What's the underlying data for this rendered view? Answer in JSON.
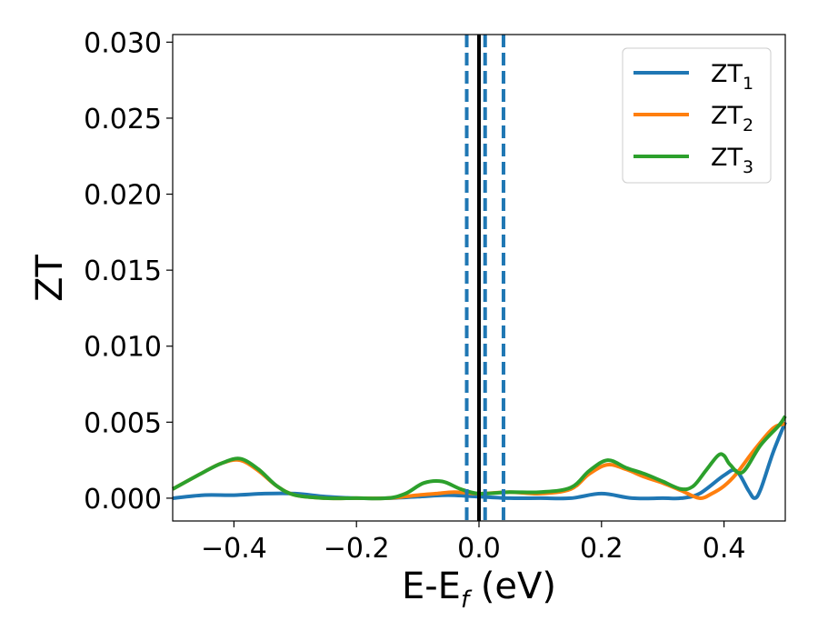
{
  "chart_data": {
    "type": "line",
    "xlabel_main": "E-E",
    "xlabel_sub": "f",
    "xlabel_tail": " (eV)",
    "ylabel": "ZT",
    "xlim": [
      -0.5,
      0.5
    ],
    "ylim": [
      -0.0015,
      0.0305
    ],
    "x_ticks": [
      -0.4,
      -0.2,
      0.0,
      0.2,
      0.4
    ],
    "x_tick_labels": [
      "−0.4",
      "−0.2",
      "0.0",
      "0.2",
      "0.4"
    ],
    "y_ticks": [
      0.0,
      0.005,
      0.01,
      0.015,
      0.02,
      0.025,
      0.03
    ],
    "y_tick_labels": [
      "0.000",
      "0.005",
      "0.010",
      "0.015",
      "0.020",
      "0.025",
      "0.030"
    ],
    "grid": false,
    "legend_position": "top-right",
    "vertical_lines": [
      {
        "x": 0.0,
        "color": "#000000",
        "style": "solid"
      },
      {
        "x": -0.02,
        "color": "#1f77b4",
        "style": "dashed"
      },
      {
        "x": 0.01,
        "color": "#1f77b4",
        "style": "dashed"
      },
      {
        "x": 0.04,
        "color": "#1f77b4",
        "style": "dashed"
      }
    ],
    "series": [
      {
        "name_main": "ZT",
        "name_sub": "1",
        "color": "#1f77b4",
        "x": [
          -0.5,
          -0.45,
          -0.4,
          -0.35,
          -0.3,
          -0.25,
          -0.2,
          -0.15,
          -0.1,
          -0.05,
          0.0,
          0.05,
          0.1,
          0.15,
          0.2,
          0.25,
          0.3,
          0.33,
          0.36,
          0.4,
          0.42,
          0.44,
          0.45,
          0.46,
          0.48,
          0.5
        ],
        "y": [
          0.0,
          0.0002,
          0.0002,
          0.0003,
          0.0003,
          0.0001,
          0.0,
          0.0,
          0.0001,
          0.0002,
          0.0001,
          0.0,
          0.0,
          0.0,
          0.0003,
          0.0,
          0.0,
          0.0,
          0.0003,
          0.0015,
          0.0018,
          0.0005,
          0.0,
          0.0006,
          0.003,
          0.005
        ]
      },
      {
        "name_main": "ZT",
        "name_sub": "2",
        "color": "#ff7f0e",
        "x": [
          -0.5,
          -0.45,
          -0.42,
          -0.39,
          -0.36,
          -0.33,
          -0.3,
          -0.25,
          -0.2,
          -0.15,
          -0.1,
          -0.07,
          -0.04,
          0.0,
          0.05,
          0.1,
          0.15,
          0.18,
          0.21,
          0.24,
          0.27,
          0.3,
          0.33,
          0.36,
          0.38,
          0.4,
          0.42,
          0.45,
          0.48,
          0.5
        ],
        "y": [
          0.0006,
          0.0017,
          0.0023,
          0.0025,
          0.0018,
          0.0008,
          0.0002,
          0.0,
          0.0,
          0.0,
          0.0002,
          0.0003,
          0.0004,
          0.0003,
          0.0004,
          0.0003,
          0.0006,
          0.0016,
          0.0022,
          0.0019,
          0.0014,
          0.001,
          0.0005,
          0.0,
          0.0003,
          0.0008,
          0.0016,
          0.0032,
          0.0046,
          0.0049
        ]
      },
      {
        "name_main": "ZT",
        "name_sub": "3",
        "color": "#2ca02c",
        "x": [
          -0.5,
          -0.45,
          -0.42,
          -0.39,
          -0.36,
          -0.33,
          -0.3,
          -0.25,
          -0.2,
          -0.15,
          -0.12,
          -0.09,
          -0.06,
          -0.03,
          0.0,
          0.05,
          0.1,
          0.15,
          0.18,
          0.21,
          0.24,
          0.27,
          0.3,
          0.33,
          0.35,
          0.37,
          0.39,
          0.4,
          0.41,
          0.43,
          0.46,
          0.49,
          0.5
        ],
        "y": [
          0.0006,
          0.0017,
          0.0023,
          0.0026,
          0.0019,
          0.0008,
          0.0002,
          0.0,
          0.0,
          0.0,
          0.0003,
          0.001,
          0.0011,
          0.0006,
          0.0003,
          0.0004,
          0.0004,
          0.0007,
          0.0018,
          0.0025,
          0.002,
          0.0016,
          0.0011,
          0.0006,
          0.0008,
          0.0018,
          0.0028,
          0.0028,
          0.0022,
          0.0017,
          0.0035,
          0.0048,
          0.0054
        ]
      }
    ]
  }
}
